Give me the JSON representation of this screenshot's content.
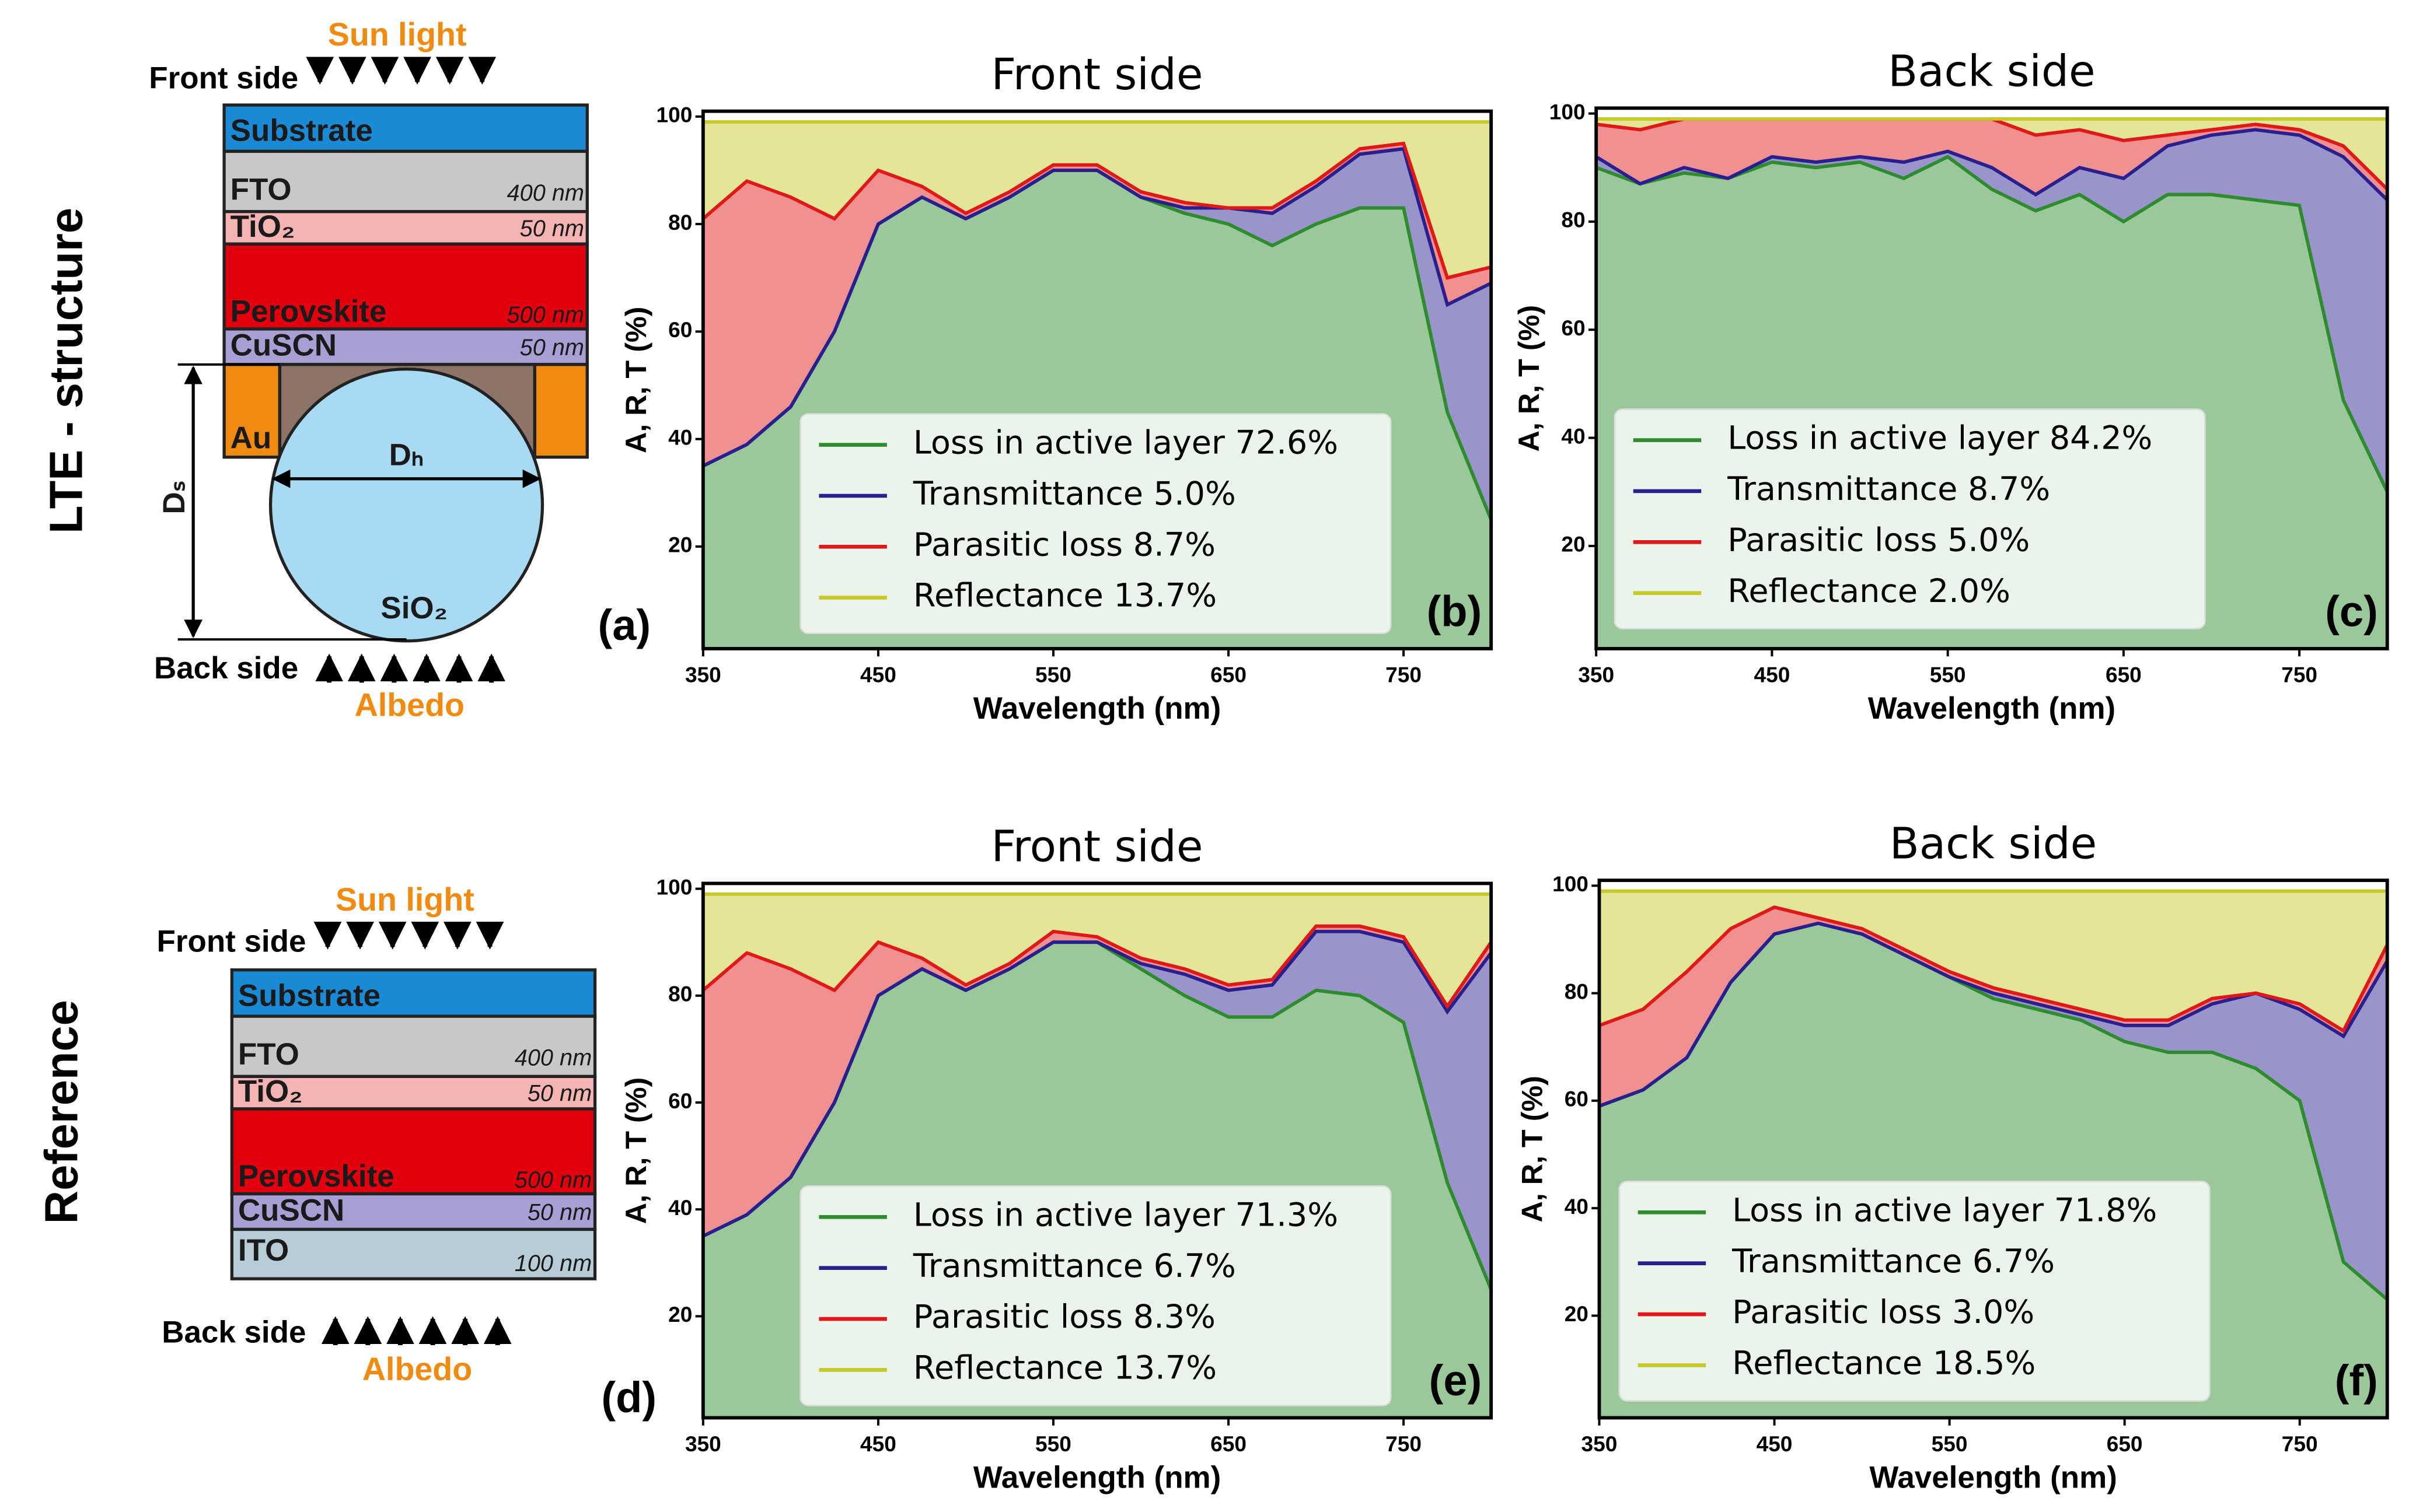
{
  "chart_data": [
    {
      "type": "area",
      "title": "Front side",
      "panel": "(b)",
      "xlabel": "Wavelength (nm)",
      "ylabel": "A, R, T (%)",
      "x": [
        350,
        375,
        400,
        425,
        450,
        475,
        500,
        525,
        550,
        575,
        600,
        625,
        650,
        675,
        700,
        725,
        750,
        775,
        800
      ],
      "xlim": [
        350,
        800
      ],
      "xticks": [
        350,
        450,
        550,
        650,
        750
      ],
      "ylim": [
        1,
        101
      ],
      "yticks": [
        20,
        40,
        60,
        80,
        100
      ],
      "series": [
        {
          "name": "Loss in active layer 72.6%",
          "color": "#2e8b2e",
          "values": [
            35,
            39,
            46,
            60,
            80,
            85,
            81,
            85,
            90,
            90,
            85,
            82,
            80,
            76,
            80,
            83,
            83,
            45,
            25
          ]
        },
        {
          "name": "Transmittance 5.0%",
          "color": "#2a1f8f",
          "values": [
            0,
            0,
            0,
            0,
            0,
            0,
            0,
            0,
            0,
            0,
            0,
            1,
            3,
            6,
            7,
            10,
            11,
            20,
            44
          ]
        },
        {
          "name": "Parasitic loss 8.7%",
          "color": "#e01818",
          "values": [
            46,
            49,
            39,
            21,
            10,
            2,
            1,
            1,
            1,
            1,
            1,
            1,
            0,
            1,
            1,
            1,
            1,
            5,
            3
          ]
        },
        {
          "name": "Reflectance 13.7%",
          "color": "#c8c828",
          "values": [
            18,
            11,
            14,
            18,
            9,
            12,
            17,
            13,
            8,
            8,
            13,
            15,
            16,
            16,
            11,
            5,
            4,
            29,
            27
          ]
        }
      ]
    },
    {
      "type": "area",
      "title": "Back side",
      "panel": "(c)",
      "xlabel": "Wavelength (nm)",
      "ylabel": "A, R, T (%)",
      "x": [
        350,
        375,
        400,
        425,
        450,
        475,
        500,
        525,
        550,
        575,
        600,
        625,
        650,
        675,
        700,
        725,
        750,
        775,
        800
      ],
      "xlim": [
        350,
        800
      ],
      "xticks": [
        350,
        450,
        550,
        650,
        750
      ],
      "ylim": [
        1,
        101
      ],
      "yticks": [
        20,
        40,
        60,
        80,
        100
      ],
      "series": [
        {
          "name": "Loss in active layer 84.2%",
          "color": "#2e8b2e",
          "values": [
            90,
            87,
            89,
            88,
            91,
            90,
            91,
            88,
            92,
            86,
            82,
            85,
            80,
            85,
            85,
            84,
            83,
            47,
            30
          ]
        },
        {
          "name": "Transmittance 8.7%",
          "color": "#2a1f8f",
          "values": [
            2,
            0,
            1,
            0,
            1,
            1,
            1,
            3,
            1,
            4,
            3,
            5,
            8,
            9,
            11,
            13,
            13,
            45,
            54
          ]
        },
        {
          "name": "Parasitic loss 5.0%",
          "color": "#e01818",
          "values": [
            6,
            10,
            9,
            11,
            7,
            8,
            7,
            8,
            6,
            9,
            11,
            7,
            7,
            2,
            1,
            1,
            1,
            2,
            2
          ]
        },
        {
          "name": "Reflectance 2.0%",
          "color": "#c8c828",
          "values": [
            1,
            2,
            0,
            0,
            0,
            0,
            0,
            0,
            0,
            0,
            3,
            2,
            4,
            3,
            2,
            1,
            2,
            5,
            13
          ]
        }
      ]
    },
    {
      "type": "area",
      "title": "Front side",
      "panel": "(e)",
      "xlabel": "Wavelength (nm)",
      "ylabel": "A, R, T (%)",
      "x": [
        350,
        375,
        400,
        425,
        450,
        475,
        500,
        525,
        550,
        575,
        600,
        625,
        650,
        675,
        700,
        725,
        750,
        775,
        800
      ],
      "xlim": [
        350,
        800
      ],
      "xticks": [
        350,
        450,
        550,
        650,
        750
      ],
      "ylim": [
        1,
        101
      ],
      "yticks": [
        20,
        40,
        60,
        80,
        100
      ],
      "series": [
        {
          "name": "Loss in active layer 71.3%",
          "color": "#2e8b2e",
          "values": [
            35,
            39,
            46,
            60,
            80,
            85,
            81,
            85,
            90,
            90,
            85,
            80,
            76,
            76,
            81,
            80,
            75,
            45,
            25
          ]
        },
        {
          "name": "Transmittance 6.7%",
          "color": "#2a1f8f",
          "values": [
            0,
            0,
            0,
            0,
            0,
            0,
            0,
            0,
            0,
            0,
            1,
            4,
            5,
            6,
            11,
            12,
            15,
            32,
            63
          ]
        },
        {
          "name": "Parasitic loss 8.3%",
          "color": "#e01818",
          "values": [
            46,
            49,
            39,
            21,
            10,
            2,
            1,
            1,
            2,
            1,
            1,
            1,
            1,
            1,
            1,
            1,
            1,
            1,
            2
          ]
        },
        {
          "name": "Reflectance 13.7%",
          "color": "#c8c828",
          "values": [
            18,
            11,
            14,
            18,
            9,
            12,
            17,
            13,
            7,
            8,
            12,
            14,
            17,
            16,
            6,
            6,
            8,
            21,
            9
          ]
        }
      ]
    },
    {
      "type": "area",
      "title": "Back side",
      "panel": "(f)",
      "xlabel": "Wavelength (nm)",
      "ylabel": "A, R, T (%)",
      "x": [
        350,
        375,
        400,
        425,
        450,
        475,
        500,
        525,
        550,
        575,
        600,
        625,
        650,
        675,
        700,
        725,
        750,
        775,
        800
      ],
      "xlim": [
        350,
        800
      ],
      "xticks": [
        350,
        450,
        550,
        650,
        750
      ],
      "ylim": [
        1,
        101
      ],
      "yticks": [
        20,
        40,
        60,
        80,
        100
      ],
      "series": [
        {
          "name": "Loss in active layer 71.8%",
          "color": "#2e8b2e",
          "values": [
            59,
            62,
            68,
            82,
            91,
            93,
            91,
            87,
            83,
            79,
            77,
            75,
            71,
            69,
            69,
            66,
            60,
            30,
            23
          ]
        },
        {
          "name": "Transmittance 6.7%",
          "color": "#2a1f8f",
          "values": [
            0,
            0,
            0,
            0,
            0,
            0,
            0,
            0,
            0,
            1,
            1,
            1,
            3,
            5,
            9,
            14,
            17,
            42,
            63
          ]
        },
        {
          "name": "Parasitic loss 3.0%",
          "color": "#e01818",
          "values": [
            15,
            15,
            16,
            10,
            5,
            1,
            1,
            1,
            1,
            1,
            1,
            1,
            1,
            1,
            1,
            0,
            1,
            1,
            3
          ]
        },
        {
          "name": "Reflectance 18.5%",
          "color": "#c8c828",
          "values": [
            25,
            22,
            15,
            7,
            3,
            5,
            7,
            11,
            15,
            18,
            20,
            22,
            24,
            24,
            20,
            19,
            21,
            26,
            10
          ]
        }
      ]
    }
  ],
  "diagrams": [
    {
      "row_label": "LTE - structure",
      "panel": "(a)",
      "sun": "Sun light",
      "front": "Front side",
      "back": "Back side",
      "albedo": "Albedo",
      "layers": [
        "Substrate",
        "FTO",
        "400 nm",
        "TiO₂",
        "50 nm",
        "Perovskite",
        "500 nm",
        "CuSCN",
        "50 nm"
      ],
      "au": "Au",
      "dh": "Dₕ",
      "ds": "Dₛ",
      "sphere": "SiO₂"
    },
    {
      "row_label": "Reference",
      "panel": "(d)",
      "sun": "Sun light",
      "front": "Front side",
      "back": "Back side",
      "albedo": "Albedo",
      "layers": [
        "Substrate",
        "FTO",
        "400 nm",
        "TiO₂",
        "50 nm",
        "Perovskite",
        "500 nm",
        "CuSCN",
        "50 nm",
        "ITO",
        "100 nm"
      ]
    }
  ]
}
